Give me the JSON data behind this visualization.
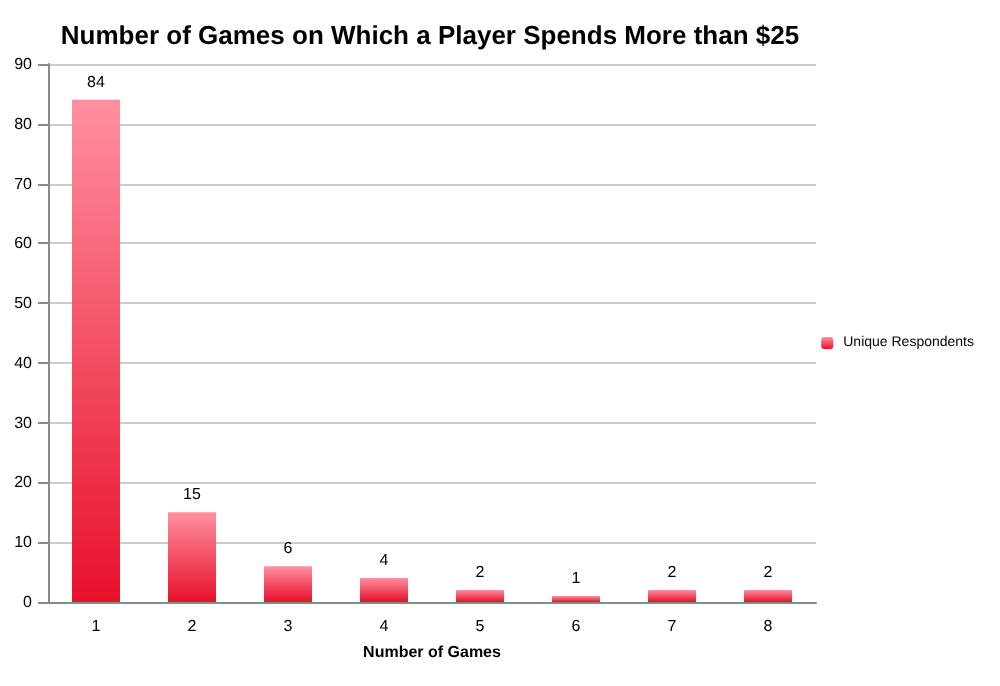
{
  "chart_data": {
    "type": "bar",
    "title": "Number of Games on Which a Player Spends More than $25",
    "xlabel": "Number of Games",
    "categories": [
      "1",
      "2",
      "3",
      "4",
      "5",
      "6",
      "7",
      "8"
    ],
    "series": [
      {
        "name": "Unique Respondents",
        "color": "#e8102a",
        "values": [
          84,
          15,
          6,
          4,
          2,
          1,
          2,
          2
        ]
      }
    ],
    "ylim": [
      0,
      90
    ],
    "yticks": [
      0,
      10,
      20,
      30,
      40,
      50,
      60,
      70,
      80,
      90
    ],
    "grid": "y",
    "legend": "right",
    "data_labels": true
  }
}
